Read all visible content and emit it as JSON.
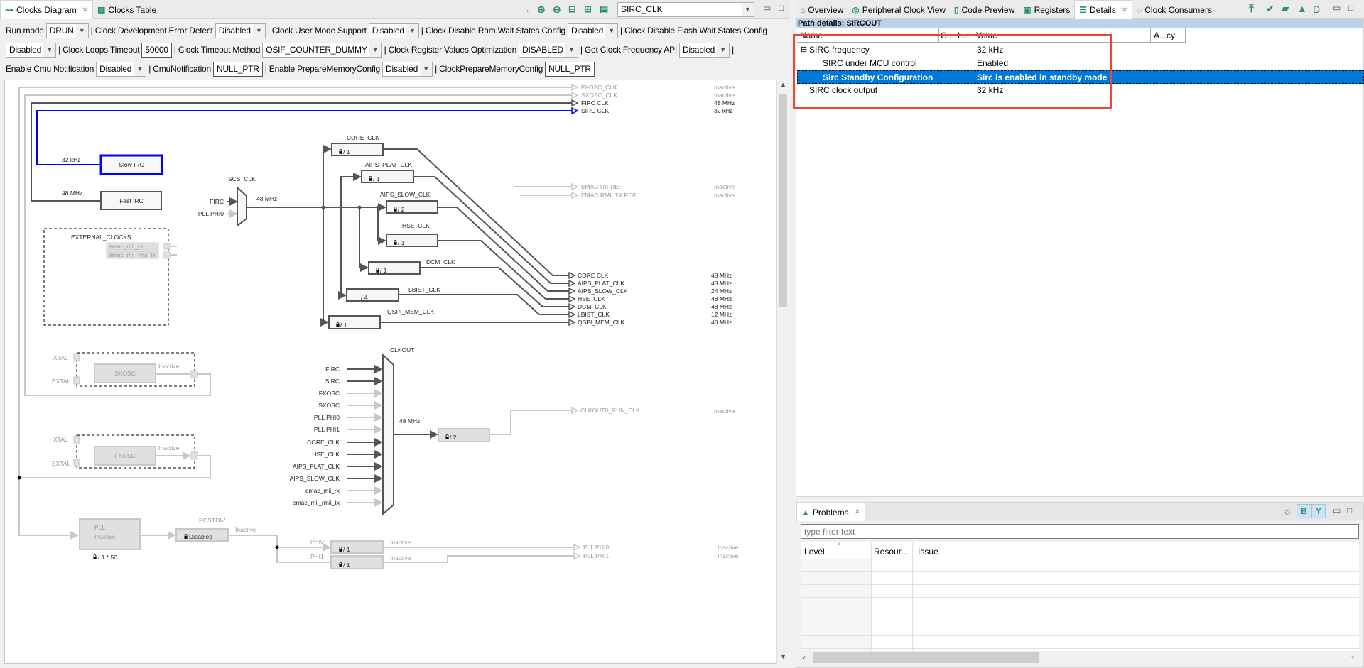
{
  "left_panel": {
    "tabs": [
      {
        "label": "Clocks Diagram",
        "active": true
      },
      {
        "label": "Clocks Table",
        "active": false
      }
    ],
    "toolbar": {
      "icons": [
        "arrow-right-icon",
        "zoom-in-icon",
        "zoom-out-icon",
        "fit-width-icon",
        "fit-height-icon",
        "fit-page-icon"
      ],
      "clock_select": "SIRC_CLK"
    },
    "config": [
      {
        "label": "Run mode",
        "value": "DRUN",
        "type": "combo"
      },
      {
        "label": "| Clock Development Error Detect",
        "value": "Disabled",
        "type": "combo"
      },
      {
        "label": "| Clock User Mode Support",
        "value": "Disabled",
        "type": "combo"
      },
      {
        "label": "| Clock Disable Ram Wait States Config",
        "value": "Disabled",
        "type": "combo"
      },
      {
        "label": "| Clock Disable Flash Wait States Config",
        "value": "Disabled",
        "type": "combo"
      },
      {
        "label": "| Clock Loops Timeout",
        "value": "50000",
        "type": "text"
      },
      {
        "label": "| Clock Timeout Method",
        "value": "OSIF_COUNTER_DUMMY",
        "type": "combo"
      },
      {
        "label": "| Clock Register Values Optimization",
        "value": "DISABLED",
        "type": "combo"
      },
      {
        "label": "| Get Clock Frequency API",
        "value": "Disabled",
        "type": "combo"
      },
      {
        "label": "Enable Cmu Notification",
        "value": "Disabled",
        "type": "combo"
      },
      {
        "label": "| CmuNotification",
        "value": "NULL_PTR",
        "type": "text"
      },
      {
        "label": "| Enable PrepareMemoryConfig",
        "value": "Disabled",
        "type": "combo"
      },
      {
        "label": "| ClockPrepareMemoryConfig",
        "value": "NULL_PTR",
        "type": "text"
      }
    ],
    "separator": "|"
  },
  "diagram": {
    "colors": {
      "active": "#555555",
      "inactive": "#c8c8c8",
      "selected": "#0000ff"
    },
    "slow_irc": {
      "name": "Slow IRC",
      "freq": "32 kHz"
    },
    "fast_irc": {
      "name": "Fast IRC",
      "freq": "48 MHz"
    },
    "external_clocks": {
      "title": "EXTERNAL_CLOCKS",
      "inputs": [
        "emac_mii_rx",
        "emac_mii_rmii_tx"
      ]
    },
    "scs": {
      "title": "SCS_CLK",
      "inputs": [
        "FIRC",
        "PLL PHI0"
      ],
      "freq": "48 MHz"
    },
    "dividers": [
      {
        "name": "CORE_CLK",
        "div": "/ 1",
        "locked": true
      },
      {
        "name": "AIPS_PLAT_CLK",
        "div": "/ 1",
        "locked": true
      },
      {
        "name": "AIPS_SLOW_CLK",
        "div": "/ 2",
        "locked": true
      },
      {
        "name": "HSE_CLK",
        "div": "/ 1",
        "locked": true
      },
      {
        "name": "DCM_CLK",
        "div": "/ 1",
        "locked": true
      },
      {
        "name": "LBIST_CLK",
        "div": "/ 4",
        "locked": false
      },
      {
        "name": "QSPI_MEM_CLK",
        "div": "/ 1",
        "locked": true
      }
    ],
    "outputs_top": [
      {
        "label": "FXOSC_CLK",
        "value": "Inactive"
      },
      {
        "label": "SXOSC_CLK",
        "value": "Inactive"
      },
      {
        "label": "FIRC CLK",
        "value": "48 MHz"
      },
      {
        "label": "SIRC CLK",
        "value": "32 kHz"
      }
    ],
    "emac_outputs": [
      {
        "label": "EMAC RX REF",
        "value": "Inactive"
      },
      {
        "label": "EMAC RMII TX REF",
        "value": "Inactive"
      }
    ],
    "outputs_main": [
      {
        "label": "CORE CLK",
        "value": "48 MHz"
      },
      {
        "label": "AIPS_PLAT_CLK",
        "value": "48 MHz"
      },
      {
        "label": "AIPS_SLOW_CLK",
        "value": "24 MHz"
      },
      {
        "label": "HSE_CLK",
        "value": "48 MHz"
      },
      {
        "label": "DCM_CLK",
        "value": "48 MHz"
      },
      {
        "label": "LBIST_CLK",
        "value": "12 MHz"
      },
      {
        "label": "QSPI_MEM_CLK",
        "value": "48 MHz"
      }
    ],
    "sxosc": {
      "name": "SXOSC",
      "status": "Inactive",
      "xtal": "XTAL",
      "extal": "EXTAL"
    },
    "fxosc": {
      "name": "FXOSC",
      "status": "Inactive",
      "xtal": "XTAL",
      "extal": "EXTAL"
    },
    "clkout": {
      "title": "CLKOUT",
      "inputs": [
        "FIRC",
        "SIRC",
        "FXOSC",
        "SXOSC",
        "PLL PHI0",
        "PLL PHI1",
        "CORE_CLK",
        "HSE_CLK",
        "AIPS_PLAT_CLK",
        "AIPS_SLOW_CLK",
        "emac_mii_rx",
        "emac_mii_rmii_tx"
      ],
      "freq": "48 MHz",
      "div": "/ 2",
      "output": "CLKOUT0_RUN_CLK",
      "status": "Inactive"
    },
    "pll": {
      "name": "PLL",
      "status": "Inactive",
      "mult": "/ 1 * 50",
      "postdiv_title": "POSTDIV",
      "postdiv": "Disabled",
      "postdiv_status": "Inactive",
      "phi0": "PHI0",
      "phi1": "PHI1",
      "phi0_div": "/ 1",
      "phi1_div": "/ 1",
      "phi0_status": "Inactive",
      "phi1_status": "Inactive",
      "outputs": [
        {
          "label": "PLL PHI0",
          "value": "Inactive"
        },
        {
          "label": "PLL PHI1",
          "value": "Inactive"
        }
      ]
    }
  },
  "right_panel": {
    "tabs": [
      {
        "label": "Overview"
      },
      {
        "label": "Peripheral Clock View"
      },
      {
        "label": "Code Preview"
      },
      {
        "label": "Registers"
      },
      {
        "label": "Details",
        "active": true
      },
      {
        "label": "Clock Consumers"
      }
    ],
    "toolbar": {
      "icons": [
        "expand-top-icon",
        "check-icon",
        "lock-icon",
        "warning-icon",
        "d-icon"
      ],
      "d_label": "D"
    },
    "path_details": "Path details: SIRCOUT",
    "columns": [
      "Name",
      "C...",
      "L...",
      "Value",
      "A...cy"
    ],
    "rows": [
      {
        "name": "SIRC frequency",
        "value": "32 kHz",
        "expanded": true
      },
      {
        "name": "SIRC under MCU control",
        "value": "Enabled"
      },
      {
        "name": "Sirc Standby Configuration",
        "value": "Sirc is enabled in standby mode",
        "selected": true
      },
      {
        "name": "SIRC clock output",
        "value": "32 kHz"
      }
    ],
    "highlight_color": "#f44336"
  },
  "problems": {
    "tab": "Problems",
    "filter_placeholder": "type filter text",
    "columns": [
      "Level",
      "Resour...",
      "Issue"
    ],
    "toolbar": {
      "b_label": "B"
    }
  }
}
